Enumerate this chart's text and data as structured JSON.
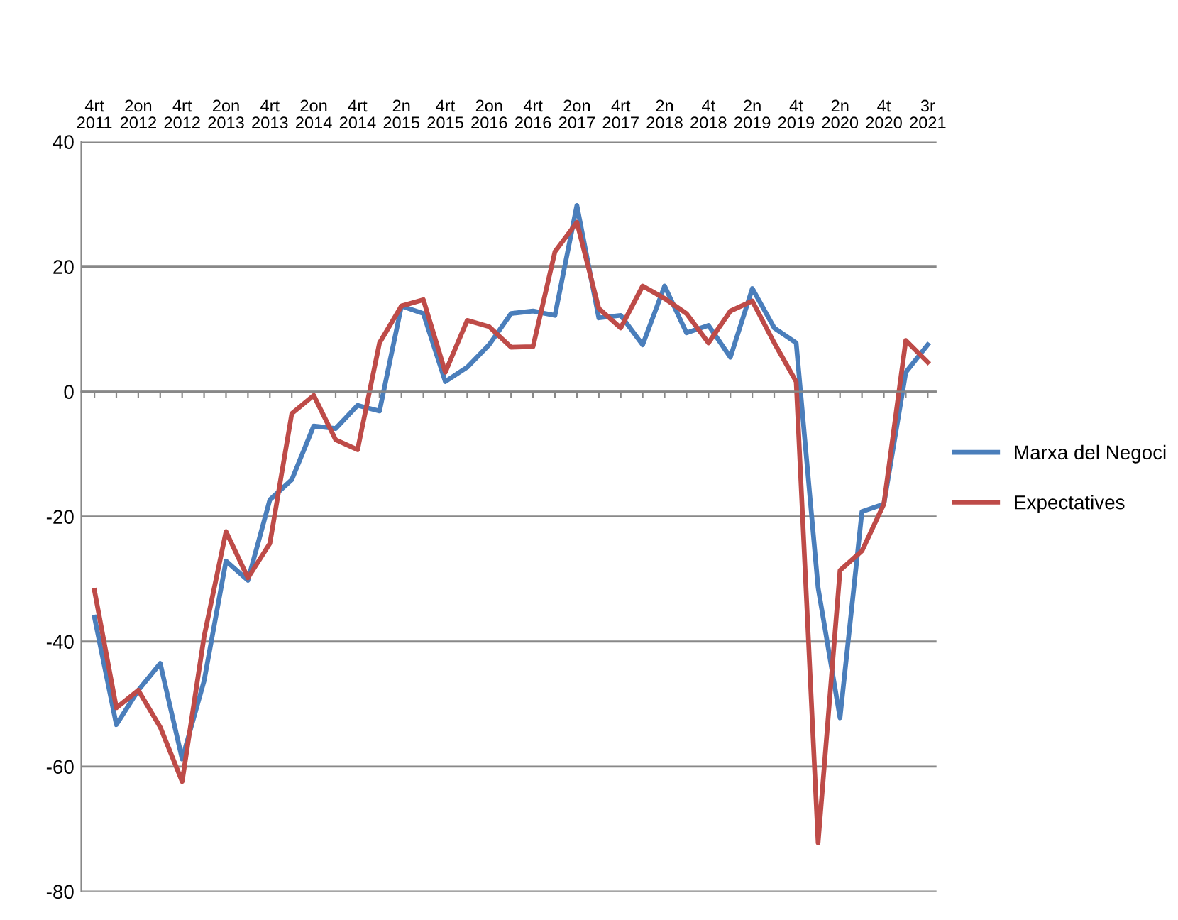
{
  "chart_data": {
    "type": "line",
    "categories": [
      "4rt\n2011",
      null,
      "2on\n2012",
      null,
      "4rt\n2012",
      null,
      "2on\n2013",
      null,
      "4rt\n2013",
      null,
      "2on\n2014",
      null,
      "4rt\n2014",
      null,
      "2n\n2015",
      null,
      "4rt\n2015",
      null,
      "2on\n2016",
      null,
      "4rt\n2016",
      null,
      "2on\n2017",
      null,
      "4rt\n2017",
      null,
      "2n\n2018",
      null,
      "4t\n2018",
      null,
      "2n\n2019",
      null,
      "4t\n2019",
      null,
      "2n\n2020",
      null,
      "4t\n2020",
      null,
      "3r\n2021"
    ],
    "series": [
      {
        "name": "Marxa del Negoci",
        "color": "#4a7ebb",
        "values": [
          -36.1,
          -53.3,
          -47.8,
          -43.5,
          -58.8,
          -46.3,
          -27.1,
          -30.2,
          -17.3,
          -14.1,
          -5.5,
          -5.9,
          -2.2,
          -3.1,
          13.7,
          12.5,
          1.6,
          3.9,
          7.5,
          12.5,
          12.9,
          12.2,
          29.8,
          11.8,
          12.2,
          7.5,
          16.9,
          9.4,
          10.6,
          5.5,
          16.5,
          10.2,
          7.8,
          -31.4,
          -52.2,
          -19.2,
          -18.0,
          3.1,
          7.5
        ]
      },
      {
        "name": "Expectatives",
        "color": "#be4b48",
        "values": [
          -31.8,
          -50.6,
          -47.8,
          -53.7,
          -62.4,
          -39.2,
          -22.4,
          -29.8,
          -24.3,
          -3.5,
          -0.6,
          -7.7,
          -9.3,
          7.8,
          13.7,
          14.7,
          3.1,
          11.4,
          10.4,
          7.1,
          7.2,
          22.4,
          27.1,
          13.3,
          10.2,
          16.9,
          14.9,
          12.5,
          7.8,
          12.9,
          14.5,
          7.8,
          1.6,
          -72.2,
          -28.6,
          -25.5,
          -18.0,
          8.2,
          4.7
        ]
      }
    ],
    "ylim": [
      -80,
      40
    ],
    "yticks": [
      -80,
      -60,
      -40,
      -20,
      0,
      20,
      40
    ],
    "grid": "y",
    "legend": "right",
    "marker": "none",
    "line_style": "solid"
  }
}
